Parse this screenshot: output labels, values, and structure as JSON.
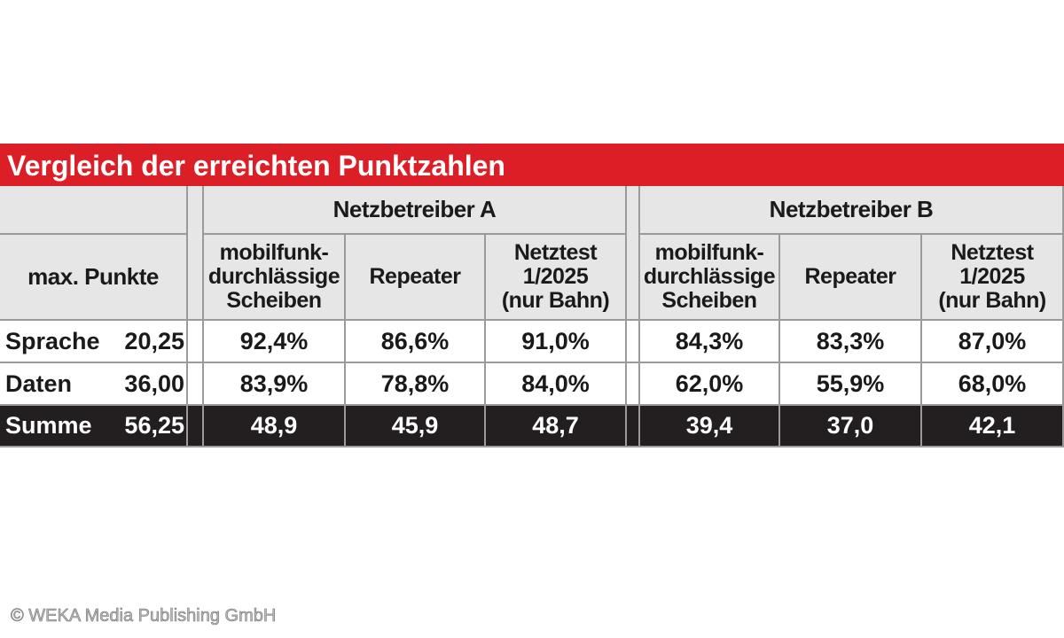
{
  "title": "Vergleich der erreichten Punktzahlen",
  "table": {
    "max_label": "max. Punkte",
    "groups": [
      {
        "name": "Netzbetreiber A",
        "columns": [
          [
            "mobilfunk-",
            "durchlässige",
            "Scheiben"
          ],
          [
            "Repeater"
          ],
          [
            "Netztest",
            "1/2025",
            "(nur Bahn)"
          ]
        ]
      },
      {
        "name": "Netzbetreiber B",
        "columns": [
          [
            "mobilfunk-",
            "durchlässige",
            "Scheiben"
          ],
          [
            "Repeater"
          ],
          [
            "Netztest",
            "1/2025",
            "(nur Bahn)"
          ]
        ]
      }
    ],
    "rows": [
      {
        "label": "Sprache",
        "max": "20,25",
        "values": [
          "92,4%",
          "86,6%",
          "91,0%",
          "84,3%",
          "83,3%",
          "87,0%"
        ]
      },
      {
        "label": "Daten",
        "max": "36,00",
        "values": [
          "83,9%",
          "78,8%",
          "84,0%",
          "62,0%",
          "55,9%",
          "68,0%"
        ]
      },
      {
        "label": "Summe",
        "max": "56,25",
        "values": [
          "48,9",
          "45,9",
          "48,7",
          "39,4",
          "37,0",
          "42,1"
        ]
      }
    ]
  },
  "footer": "© WEKA Media Publishing GmbH"
}
